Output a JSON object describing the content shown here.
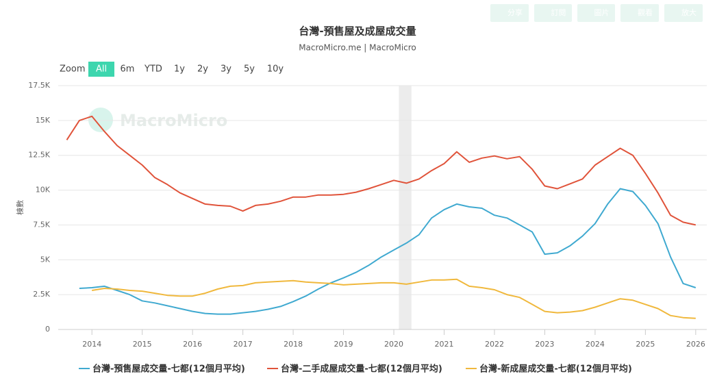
{
  "toolbar": [
    "分享",
    "訂閱",
    "圖片",
    "觀看",
    "放大"
  ],
  "range_selector": {
    "label": "Zoom",
    "buttons": [
      "All",
      "6m",
      "YTD",
      "1y",
      "2y",
      "3y",
      "5y",
      "10y"
    ],
    "selected": 0
  },
  "chart_data": {
    "type": "line",
    "title": "台灣-預售屋及成屋成交量",
    "subtitle": "MacroMicro.me | MacroMicro",
    "watermark": "MacroMicro",
    "y_label": "棟數",
    "x": [
      2013.5,
      2013.75,
      2014,
      2014.25,
      2014.5,
      2014.75,
      2015,
      2015.25,
      2015.5,
      2015.75,
      2016,
      2016.25,
      2016.5,
      2016.75,
      2017,
      2017.25,
      2017.5,
      2017.75,
      2018,
      2018.25,
      2018.5,
      2018.75,
      2019,
      2019.25,
      2019.5,
      2019.75,
      2020,
      2020.25,
      2020.5,
      2020.75,
      2021,
      2021.25,
      2021.5,
      2021.75,
      2022,
      2022.25,
      2022.5,
      2022.75,
      2023,
      2023.25,
      2023.5,
      2023.75,
      2024,
      2024.25,
      2024.5,
      2024.75,
      2025,
      2025.25,
      2025.5,
      2025.75,
      2026
    ],
    "xlim": [
      2013.33,
      2026.22
    ],
    "xticks": [
      2014,
      2015,
      2016,
      2017,
      2018,
      2019,
      2020,
      2021,
      2022,
      2023,
      2024,
      2025,
      2026
    ],
    "ylim": [
      0,
      17500
    ],
    "yticks": [
      0,
      {
        "value": 2500,
        "label": "2.5K"
      },
      {
        "value": 5000,
        "label": "5K"
      },
      {
        "value": 7500,
        "label": "7.5K"
      },
      {
        "value": 10000,
        "label": "10K"
      },
      {
        "value": 12500,
        "label": "12.5K"
      },
      {
        "value": 15000,
        "label": "15K"
      },
      {
        "value": 17500,
        "label": "17.5K"
      }
    ],
    "grid": true,
    "shaded_range": [
      2020.1,
      2020.35
    ],
    "series": [
      {
        "name": "台灣-預售屋成交量-七都(12個月平均)",
        "color": "#3fa9d0",
        "values": [
          null,
          2950,
          3000,
          3100,
          2800,
          2500,
          2050,
          1900,
          1700,
          1500,
          1300,
          1150,
          1100,
          1100,
          1200,
          1300,
          1450,
          1650,
          2000,
          2400,
          2900,
          3350,
          3700,
          4100,
          4600,
          5200,
          5700,
          6200,
          6800,
          8000,
          8600,
          9000,
          8800,
          8700,
          8200,
          8000,
          7500,
          7000,
          5400,
          5500,
          6000,
          6700,
          7600,
          9000,
          10100,
          9900,
          8900,
          7600,
          5200,
          3300,
          3000
        ]
      },
      {
        "name": "台灣-二手成屋成交量-七都(12個月平均)",
        "color": "#e0533a",
        "values": [
          13600,
          15000,
          15300,
          14200,
          13200,
          12500,
          11800,
          10900,
          10400,
          9800,
          9400,
          9000,
          8900,
          8850,
          8500,
          8900,
          9000,
          9200,
          9500,
          9500,
          9650,
          9650,
          9700,
          9850,
          10100,
          10400,
          10700,
          10500,
          10800,
          11400,
          11900,
          12750,
          12000,
          12300,
          12450,
          12250,
          12400,
          11500,
          10300,
          10100,
          10450,
          10800,
          11800,
          12400,
          13000,
          12500,
          11200,
          9800,
          8200,
          7700,
          7500
        ]
      },
      {
        "name": "台灣-新成屋成交量-七都(12個月平均)",
        "color": "#f0b83c",
        "values": [
          null,
          null,
          2800,
          2950,
          2900,
          2800,
          2750,
          2600,
          2450,
          2400,
          2400,
          2600,
          2900,
          3100,
          3150,
          3350,
          3400,
          3450,
          3500,
          3400,
          3350,
          3300,
          3200,
          3250,
          3300,
          3350,
          3350,
          3250,
          3400,
          3550,
          3550,
          3600,
          3100,
          3000,
          2850,
          2500,
          2300,
          1800,
          1300,
          1200,
          1250,
          1350,
          1600,
          1900,
          2200,
          2100,
          1800,
          1500,
          1000,
          850,
          800
        ]
      }
    ]
  }
}
